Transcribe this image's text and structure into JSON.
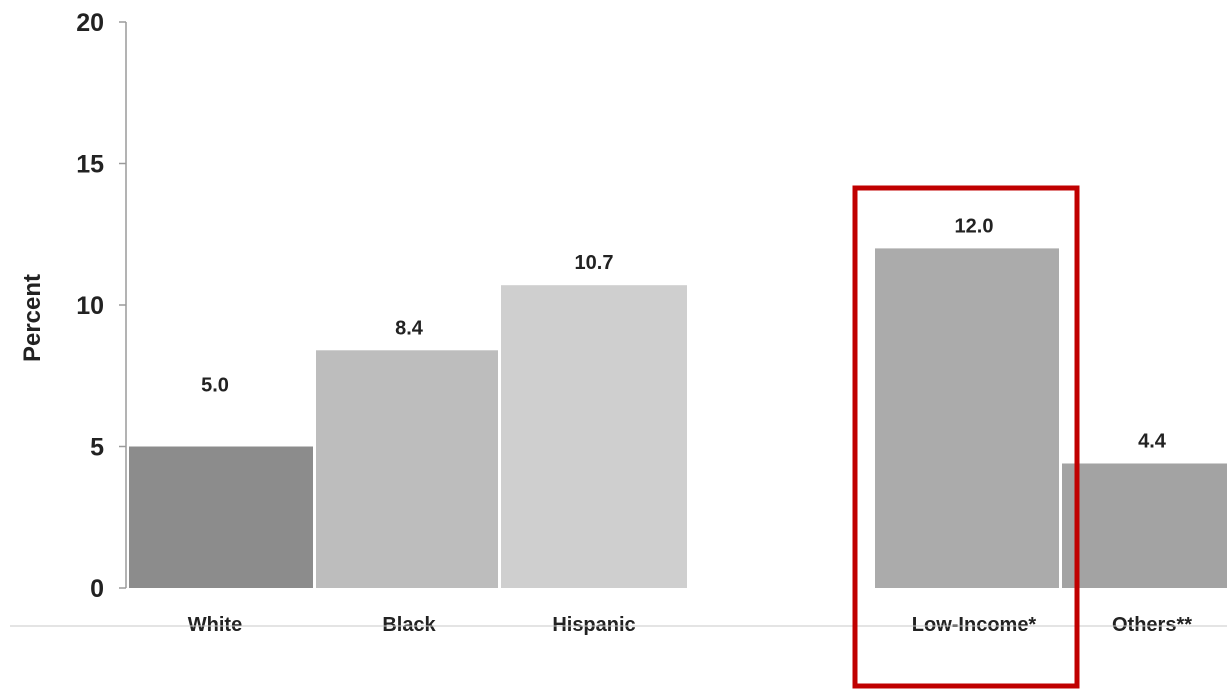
{
  "chart_data": {
    "type": "bar",
    "categories": [
      "White",
      "Black",
      "Hispanic",
      "Low-Income*",
      "Others**"
    ],
    "values": [
      5.0,
      8.4,
      10.7,
      12.0,
      4.4
    ],
    "value_labels": [
      "5.0",
      "8.4",
      "10.7",
      "12.0",
      "4.4"
    ],
    "ylabel": "Percent",
    "ylim": [
      0,
      20
    ],
    "yticks": [
      0,
      5,
      10,
      15,
      20
    ],
    "ytick_labels": [
      "0",
      "5",
      "10",
      "15",
      "20"
    ],
    "grid": false,
    "legend": "none",
    "highlighted_category": "Low-Income*",
    "colors": {
      "bars": [
        "#8c8c8c",
        "#bdbdbd",
        "#cfcfcf",
        "#ababab",
        "#a3a3a3"
      ],
      "highlight_box": "#c00000",
      "axis": "#9a9a9a",
      "text": "#222222"
    }
  }
}
